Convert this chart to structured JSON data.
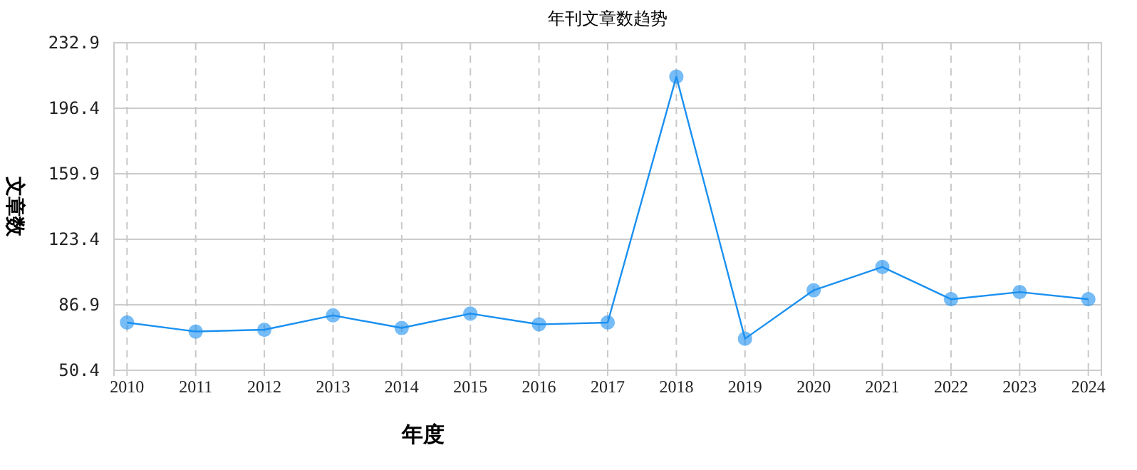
{
  "chart_data": {
    "type": "line",
    "title": "年刊文章数趋势",
    "xlabel": "年度",
    "ylabel": "文章数",
    "categories": [
      "2010",
      "2011",
      "2012",
      "2013",
      "2014",
      "2015",
      "2016",
      "2017",
      "2018",
      "2019",
      "2020",
      "2021",
      "2022",
      "2023",
      "2024"
    ],
    "series": [
      {
        "color": "#1a90f0",
        "values": [
          77,
          72,
          73,
          81,
          74,
          82,
          76,
          77,
          214,
          68,
          95,
          108,
          90,
          94,
          90
        ]
      }
    ],
    "ylim": [
      50.4,
      232.9
    ],
    "yticks": [
      50.4,
      86.9,
      123.4,
      159.9,
      196.4,
      232.9
    ],
    "grid": true,
    "marker": "circle",
    "line_style": "solid"
  }
}
